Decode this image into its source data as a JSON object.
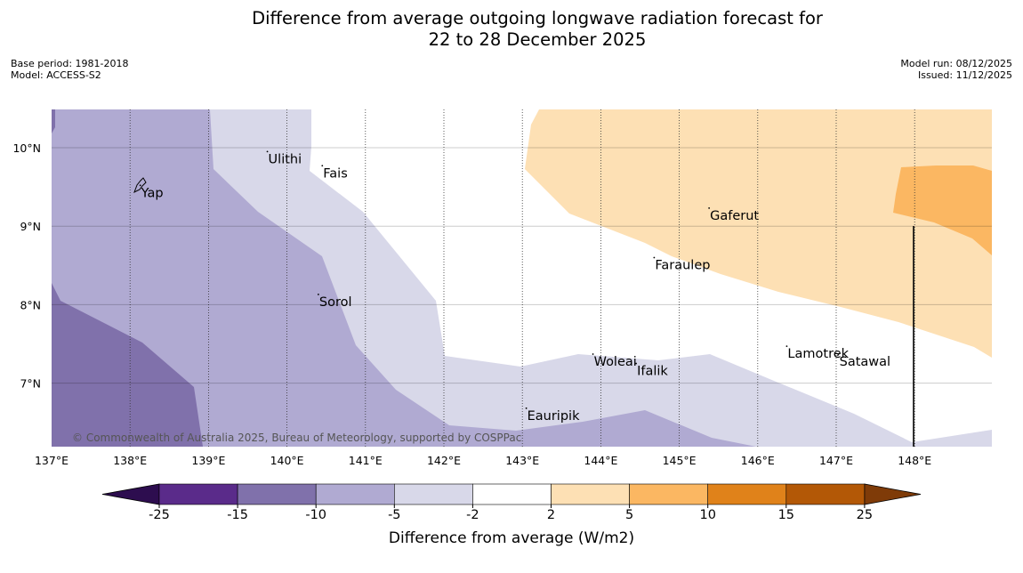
{
  "title": {
    "line1": "Difference from average outgoing longwave radiation forecast for",
    "line2": "22 to 28 December 2025"
  },
  "meta_left": {
    "base_period": "Base period: 1981-2018",
    "model": "Model: ACCESS-S2"
  },
  "meta_right": {
    "model_run": "Model run: 08/12/2025",
    "issued": "Issued: 11/12/2025"
  },
  "map": {
    "lon_labels": [
      "137°E",
      "138°E",
      "139°E",
      "140°E",
      "141°E",
      "142°E",
      "143°E",
      "144°E",
      "145°E",
      "146°E",
      "147°E",
      "148°E"
    ],
    "lat_labels": [
      "10°N",
      "9°N",
      "8°N",
      "7°N"
    ],
    "places": [
      {
        "name": "Ulithi",
        "lon": 139.75,
        "lat": 9.95
      },
      {
        "name": "Fais",
        "lon": 140.45,
        "lat": 9.77
      },
      {
        "name": "Yap",
        "lon": 138.13,
        "lat": 9.52
      },
      {
        "name": "Gaferut",
        "lon": 145.38,
        "lat": 9.23
      },
      {
        "name": "Faraulep",
        "lon": 144.68,
        "lat": 8.6
      },
      {
        "name": "Sorol",
        "lon": 140.4,
        "lat": 8.13
      },
      {
        "name": "Woleai",
        "lon": 143.9,
        "lat": 7.37
      },
      {
        "name": "Ifalik",
        "lon": 144.45,
        "lat": 7.25
      },
      {
        "name": "Lamotrek",
        "lon": 146.37,
        "lat": 7.47
      },
      {
        "name": "Satawal",
        "lon": 147.03,
        "lat": 7.37
      },
      {
        "name": "Eauripik",
        "lon": 143.05,
        "lat": 6.68
      }
    ],
    "credit": "© Commonwealth of Australia 2025, Bureau of Meteorology, supported by COSPPac"
  },
  "colorbar": {
    "ticks": [
      "-25",
      "-15",
      "-10",
      "-5",
      "-2",
      "2",
      "5",
      "10",
      "15",
      "25"
    ],
    "label": "Difference from average (W/m2)",
    "colors": {
      "below_min": "#2d0d4f",
      "lt_-15": "#5a2b8a",
      "-15_-10": "#8071ab",
      "-10_-5": "#b0aad2",
      "-5_-2": "#d8d8e9",
      "-2_2": "#ffffff",
      "2_5": "#fde0b4",
      "5_10": "#fbb762",
      "10_15": "#e0821a",
      "15_25": "#b35806",
      "above_max": "#7f3b08"
    }
  }
}
